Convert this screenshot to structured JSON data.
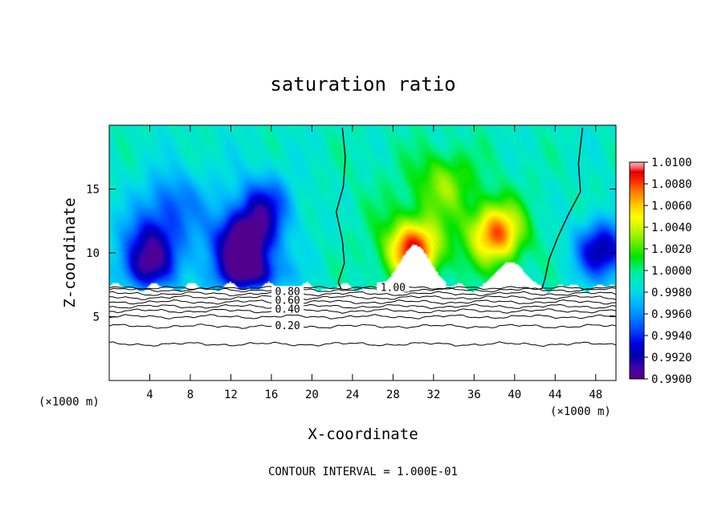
{
  "chart_data": {
    "type": "heatmap",
    "title": "saturation ratio",
    "xlabel": "X-coordinate",
    "ylabel": "Z-coordinate",
    "x_unit_note": "(×1000 m)",
    "footer": "CONTOUR INTERVAL = 1.000E-01",
    "xlim": [
      0,
      50
    ],
    "ylim": [
      0,
      20
    ],
    "x_ticks": [
      4,
      8,
      12,
      16,
      20,
      24,
      28,
      32,
      36,
      40,
      44,
      48
    ],
    "y_ticks": [
      5,
      10,
      15
    ],
    "colorbar": {
      "min": 0.99,
      "max": 1.01,
      "step": 0.0002,
      "tick_labels": [
        "1.0100",
        "1.0080",
        "1.0060",
        "1.0040",
        "1.0020",
        "1.0000",
        "0.9980",
        "0.9960",
        "0.9940",
        "0.9920",
        "0.9900"
      ]
    },
    "contour_labels": [
      {
        "text": "1.00",
        "x": 28.0,
        "y": 7.2
      },
      {
        "text": "0.80",
        "x": 17.6,
        "y": 6.9
      },
      {
        "text": "0.60",
        "x": 17.6,
        "y": 6.2
      },
      {
        "text": "0.40",
        "x": 17.6,
        "y": 5.5
      },
      {
        "text": "0.20",
        "x": 17.6,
        "y": 4.2
      }
    ],
    "contour_levels_below_cloud": [
      {
        "level": 0.9,
        "z": 7.1
      },
      {
        "level": 0.8,
        "z": 6.8
      },
      {
        "level": 0.7,
        "z": 6.5
      },
      {
        "level": 0.6,
        "z": 6.15
      },
      {
        "level": 0.5,
        "z": 5.8
      },
      {
        "level": 0.4,
        "z": 5.45
      },
      {
        "level": 0.3,
        "z": 5.0
      },
      {
        "level": 0.2,
        "z": 4.25
      },
      {
        "level": 0.1,
        "z": 2.85
      }
    ],
    "contour_1_00_lines": [
      {
        "points": [
          [
            23.0,
            19.8
          ],
          [
            23.3,
            17.5
          ],
          [
            23.1,
            15.2
          ],
          [
            22.4,
            13.2
          ],
          [
            23.0,
            11.0
          ],
          [
            23.2,
            9.2
          ],
          [
            22.6,
            7.7
          ],
          [
            22.9,
            7.15
          ]
        ]
      },
      {
        "points": [
          [
            46.7,
            19.8
          ],
          [
            46.3,
            17.0
          ],
          [
            46.5,
            14.8
          ],
          [
            45.3,
            13.0
          ],
          [
            44.3,
            11.3
          ],
          [
            43.4,
            9.5
          ],
          [
            43.0,
            8.0
          ],
          [
            42.7,
            7.2
          ]
        ]
      }
    ],
    "field_features": [
      {
        "name": "dry-left-a",
        "x": 4.0,
        "z": 10.5,
        "delta": -0.006
      },
      {
        "name": "dry-left-b",
        "x": 6.0,
        "z": 14.0,
        "delta": -0.003
      },
      {
        "name": "dry-center-left",
        "x": 13.3,
        "z": 10.6,
        "delta": -0.0095
      },
      {
        "name": "dry-peak",
        "x": 15.3,
        "z": 13.6,
        "delta": -0.005
      },
      {
        "name": "moist-plume",
        "x": 30.0,
        "z": 10.2,
        "delta": 0.009
      },
      {
        "name": "moist-right",
        "x": 38.2,
        "z": 11.5,
        "delta": 0.008
      },
      {
        "name": "moist-upper",
        "x": 33.0,
        "z": 15.5,
        "delta": 0.003
      },
      {
        "name": "dry-right",
        "x": 48.6,
        "z": 10.2,
        "delta": -0.007
      }
    ],
    "cloud_domes": [
      {
        "x": 30.2,
        "z_top": 10.6,
        "half_width": 2.2
      },
      {
        "x": 39.6,
        "z_top": 9.3,
        "half_width": 2.0
      }
    ],
    "cloud_base_z": 7.3,
    "grid": false,
    "legend_position": "right colorbar"
  }
}
